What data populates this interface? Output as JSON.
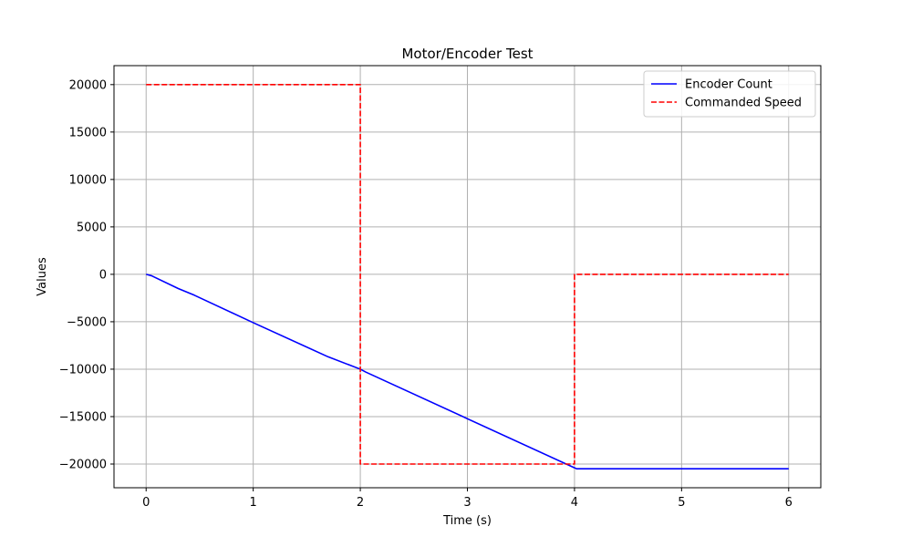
{
  "chart_data": {
    "type": "line",
    "title": "Motor/Encoder Test",
    "xlabel": "Time (s)",
    "ylabel": "Values",
    "xlim": [
      -0.3,
      6.3
    ],
    "ylim": [
      -22500,
      22000
    ],
    "xticks": [
      0,
      1,
      2,
      3,
      4,
      5,
      6
    ],
    "xtick_labels": [
      "0",
      "1",
      "2",
      "3",
      "4",
      "5",
      "6"
    ],
    "yticks": [
      20000,
      15000,
      10000,
      5000,
      0,
      -5000,
      -10000,
      -15000,
      -20000
    ],
    "ytick_labels": [
      "20000",
      "15000",
      "10000",
      "5000",
      "0",
      "−5000",
      "−10000",
      "−15000",
      "−20000"
    ],
    "grid": true,
    "legend_position": "top-right",
    "series": [
      {
        "name": "Encoder Count",
        "color": "#0000ff",
        "style": "solid",
        "x": [
          0,
          0.05,
          0.3,
          0.45,
          1.0,
          1.7,
          2.0,
          2.05,
          4.0,
          4.02,
          6.0
        ],
        "y": [
          0,
          -150,
          -1500,
          -2200,
          -5100,
          -8700,
          -10000,
          -10300,
          -20400,
          -20500,
          -20500
        ]
      },
      {
        "name": "Commanded Speed",
        "color": "#ff0000",
        "style": "dashed",
        "x": [
          0,
          2,
          2,
          4,
          4,
          6
        ],
        "y": [
          20000,
          20000,
          -20000,
          -20000,
          0,
          0
        ]
      }
    ]
  }
}
